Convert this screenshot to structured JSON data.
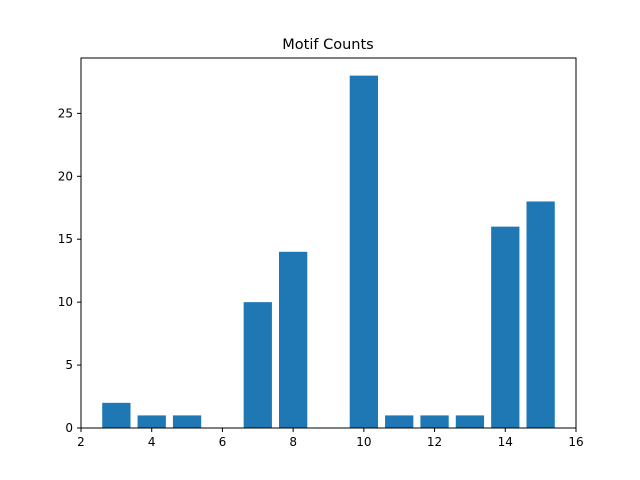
{
  "chart_data": {
    "type": "bar",
    "title": "Motif Counts",
    "xlabel": "",
    "ylabel": "",
    "x": [
      3,
      4,
      5,
      7,
      8,
      10,
      11,
      12,
      13,
      14,
      15
    ],
    "values": [
      2,
      1,
      1,
      10,
      14,
      28,
      1,
      1,
      1,
      16,
      18
    ],
    "xlim": [
      2,
      16
    ],
    "ylim": [
      0,
      29.4
    ],
    "xticks": [
      2,
      4,
      6,
      8,
      10,
      12,
      14,
      16
    ],
    "yticks": [
      0,
      5,
      10,
      15,
      20,
      25
    ],
    "bar_color": "#1f77b4",
    "grid": false,
    "legend": "none"
  }
}
